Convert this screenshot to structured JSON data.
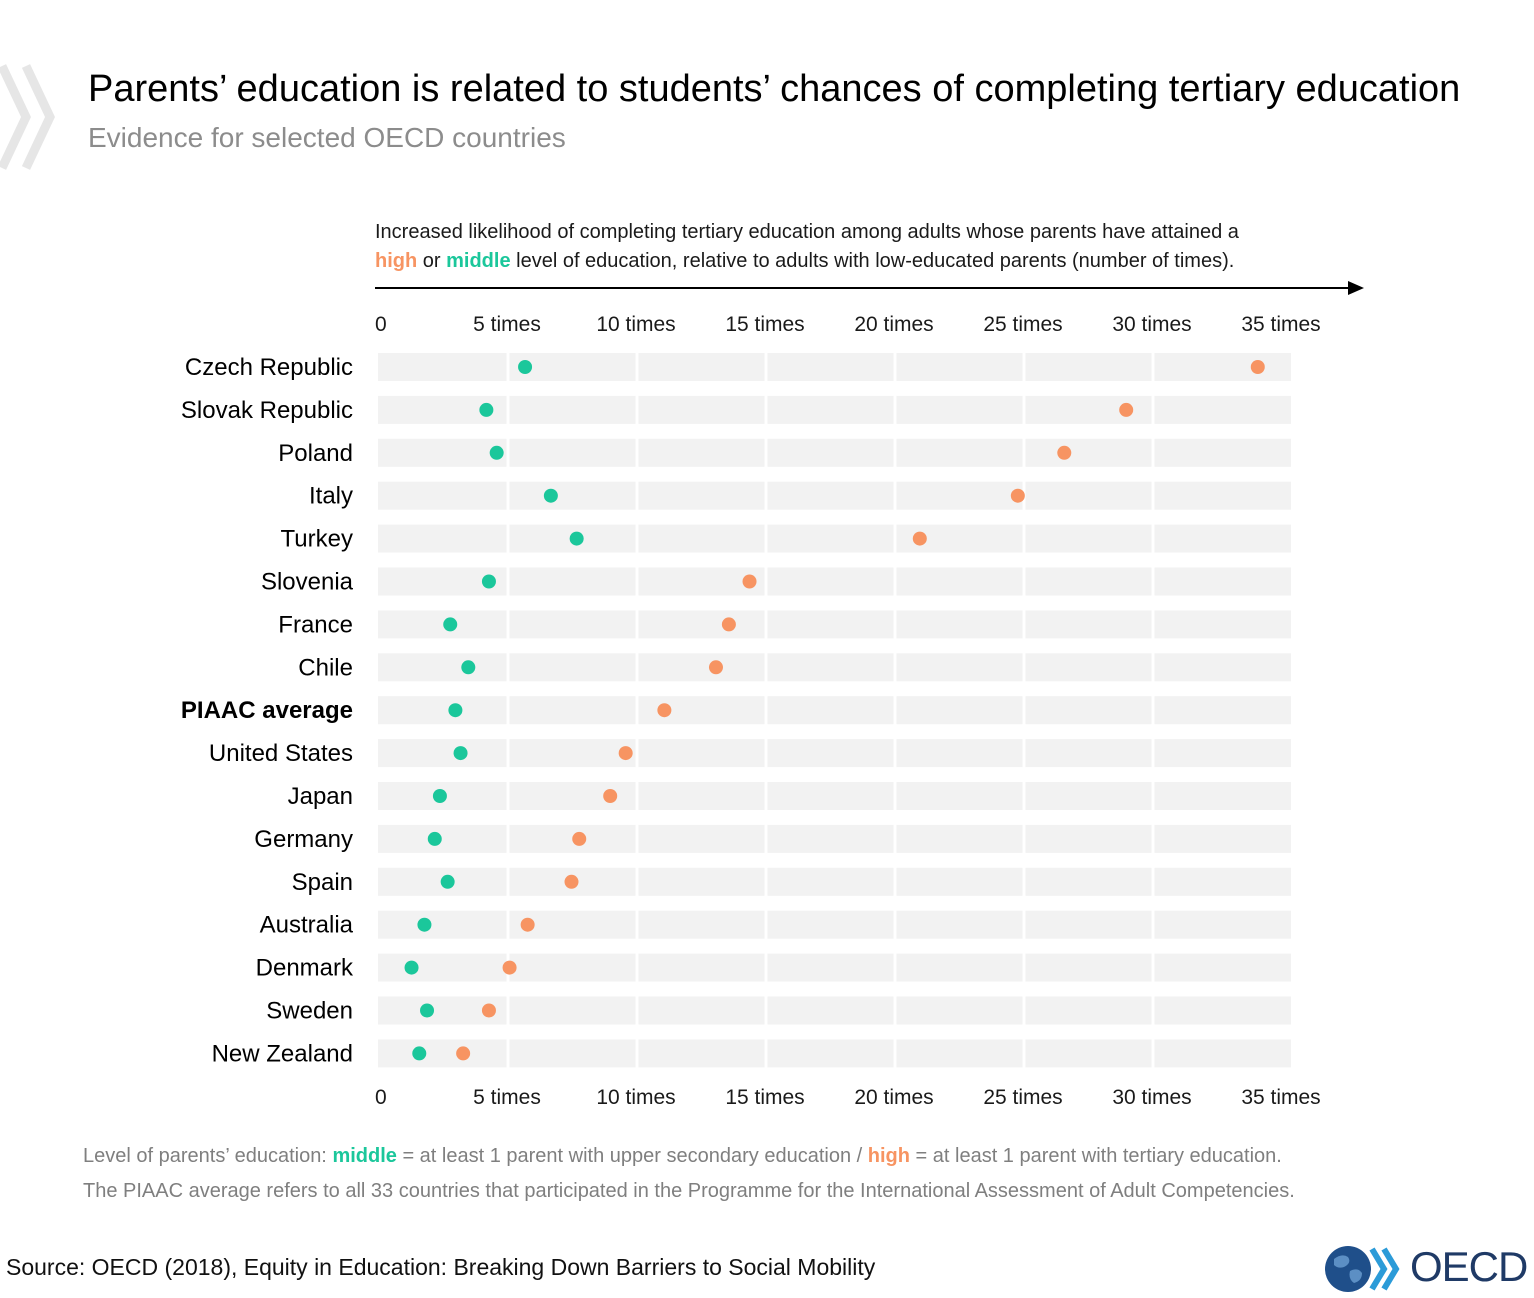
{
  "header": {
    "title": "Parents’ education is related to students’ chances of completing tertiary education",
    "subtitle": "Evidence for selected OECD countries"
  },
  "axis_description": {
    "line1": "Increased likelihood of completing tertiary education among adults whose parents have attained a",
    "high_word": "high",
    "or_word": " or ",
    "middle_word": "middle",
    "line2_rest": " level of education, relative to adults with low-educated parents (number of times)."
  },
  "notes": {
    "line1_prefix": "Level of parents’ education: ",
    "middle_word": "middle",
    "middle_def": " = at least 1 parent with upper secondary education / ",
    "high_word": "high",
    "high_def": " = at least 1 parent with tertiary education.",
    "line2": "The PIAAC average refers to all 33 countries that participated in the Programme for the International Assessment of Adult Competencies."
  },
  "footer": {
    "source": "Source: OECD (2018), Equity in Education: Breaking Down Barriers to Social Mobility",
    "logo_text": "OECD"
  },
  "colors": {
    "middle": "#1bc79b",
    "high": "#f79462",
    "row_band": "#f2f2f2"
  },
  "chart_data": {
    "type": "scatter",
    "subtype": "dot-plot",
    "orientation": "horizontal",
    "xlim": [
      0,
      35
    ],
    "x_ticks": [
      0,
      5,
      10,
      15,
      20,
      25,
      30,
      35
    ],
    "x_tick_labels": [
      "0",
      "5 times",
      "10 times",
      "15 times",
      "20 times",
      "25 times",
      "30 times",
      "35 times"
    ],
    "x_ticks_shown": "top-and-bottom",
    "grid": true,
    "legend": "none",
    "highlighted_category": "PIAAC average",
    "categories": [
      "Czech Republic",
      "Slovak Republic",
      "Poland",
      "Italy",
      "Turkey",
      "Slovenia",
      "France",
      "Chile",
      "PIAAC average",
      "United States",
      "Japan",
      "Germany",
      "Spain",
      "Australia",
      "Denmark",
      "Sweden",
      "New Zealand"
    ],
    "series": [
      {
        "key": "middle",
        "color": "#1bc79b",
        "values": [
          5.7,
          4.2,
          4.6,
          6.7,
          7.7,
          4.3,
          2.8,
          3.5,
          3.0,
          3.2,
          2.4,
          2.2,
          2.7,
          1.8,
          1.3,
          1.9,
          1.6
        ]
      },
      {
        "key": "high",
        "color": "#f79462",
        "values": [
          34.1,
          29.0,
          26.6,
          24.8,
          21.0,
          14.4,
          13.6,
          13.1,
          11.1,
          9.6,
          9.0,
          7.8,
          7.5,
          5.8,
          5.1,
          4.3,
          3.3
        ]
      }
    ]
  }
}
